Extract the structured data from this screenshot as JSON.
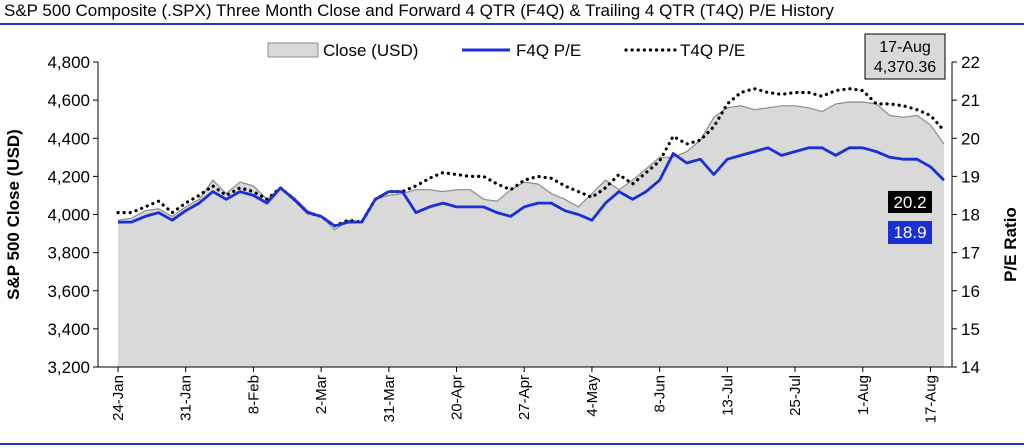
{
  "title": "S&P 500 Composite (.SPX) Three Month Close and Forward 4 QTR (F4Q) & Trailing 4 QTR (T4Q) P/E History",
  "chart_data": {
    "type": "area",
    "ylabel": "S&P 500 Close (USD)",
    "y2label": "P/E Ratio",
    "ylim": [
      3200,
      4800
    ],
    "yticks": [
      3200,
      3400,
      3600,
      3800,
      4000,
      4200,
      4400,
      4600,
      4800
    ],
    "ytick_labels": [
      "3,200",
      "3,400",
      "3,600",
      "3,800",
      "4,000",
      "4,200",
      "4,400",
      "4,600",
      "4,800"
    ],
    "y2lim": [
      14,
      22
    ],
    "y2ticks": [
      14,
      15,
      16,
      17,
      18,
      19,
      20,
      21,
      22
    ],
    "y2tick_labels": [
      "14",
      "15",
      "16",
      "17",
      "18",
      "19",
      "20",
      "21",
      "22"
    ],
    "xtick_labels": [
      "24-Jan",
      "31-Jan",
      "8-Feb",
      "2-Mar",
      "31-Mar",
      "20-Apr",
      "27-Apr",
      "4-May",
      "8-Jun",
      "13-Jul",
      "25-Jul",
      "1-Aug",
      "17-Aug"
    ],
    "xtick_index": [
      0,
      5,
      10,
      15,
      20,
      25,
      30,
      35,
      40,
      45,
      50,
      55,
      60
    ],
    "grid": false,
    "legend": "top",
    "legend_labels": [
      "Close (USD)",
      "F4Q P/E",
      "T4Q P/E"
    ],
    "colors": {
      "close_fill": "#d9d9d9",
      "close_line": "#8c8c8c",
      "f4q": "#1a2fd6",
      "t4q": "#000000",
      "axis_rule": "#1f3fbf"
    },
    "series": [
      {
        "name": "Close (USD)",
        "axis": "left",
        "values": [
          3970,
          3980,
          4020,
          4030,
          3990,
          4040,
          4080,
          4180,
          4110,
          4170,
          4150,
          4080,
          4140,
          4090,
          4020,
          3990,
          3920,
          3970,
          3960,
          4080,
          4100,
          4110,
          4130,
          4130,
          4120,
          4130,
          4130,
          4080,
          4070,
          4130,
          4170,
          4160,
          4110,
          4080,
          4040,
          4110,
          4180,
          4130,
          4180,
          4240,
          4300,
          4300,
          4330,
          4390,
          4510,
          4560,
          4570,
          4550,
          4560,
          4570,
          4570,
          4560,
          4540,
          4580,
          4590,
          4590,
          4580,
          4520,
          4510,
          4520,
          4470,
          4370
        ]
      },
      {
        "name": "F4Q P/E",
        "axis": "right",
        "values": [
          17.8,
          17.8,
          17.95,
          18.05,
          17.85,
          18.1,
          18.3,
          18.6,
          18.4,
          18.6,
          18.5,
          18.3,
          18.7,
          18.4,
          18.05,
          17.95,
          17.7,
          17.8,
          17.8,
          18.4,
          18.6,
          18.6,
          18.05,
          18.2,
          18.3,
          18.2,
          18.2,
          18.2,
          18.05,
          17.95,
          18.2,
          18.3,
          18.3,
          18.1,
          18.0,
          17.85,
          18.3,
          18.6,
          18.4,
          18.6,
          18.9,
          19.6,
          19.35,
          19.45,
          19.05,
          19.45,
          19.55,
          19.65,
          19.75,
          19.55,
          19.65,
          19.75,
          19.75,
          19.55,
          19.75,
          19.75,
          19.65,
          19.5,
          19.45,
          19.45,
          19.25,
          18.9
        ]
      },
      {
        "name": "T4Q P/E",
        "axis": "right",
        "values": [
          18.05,
          18.05,
          18.2,
          18.35,
          18.05,
          18.3,
          18.5,
          18.75,
          18.5,
          18.7,
          18.6,
          18.4,
          18.7,
          18.4,
          18.05,
          17.95,
          17.7,
          17.85,
          17.8,
          18.4,
          18.6,
          18.6,
          18.75,
          18.95,
          19.1,
          19.05,
          19.0,
          19.0,
          18.8,
          18.65,
          18.9,
          19.0,
          18.95,
          18.75,
          18.6,
          18.45,
          18.7,
          19.05,
          18.8,
          19.1,
          19.4,
          20.05,
          19.85,
          19.95,
          20.3,
          20.9,
          21.2,
          21.3,
          21.2,
          21.15,
          21.2,
          21.2,
          21.1,
          21.25,
          21.3,
          21.25,
          20.9,
          20.9,
          20.85,
          20.75,
          20.6,
          20.2
        ]
      }
    ],
    "annotations": {
      "date": "17-Aug",
      "close": "4,370.36",
      "t4q_last": "20.2",
      "f4q_last": "18.9"
    }
  }
}
